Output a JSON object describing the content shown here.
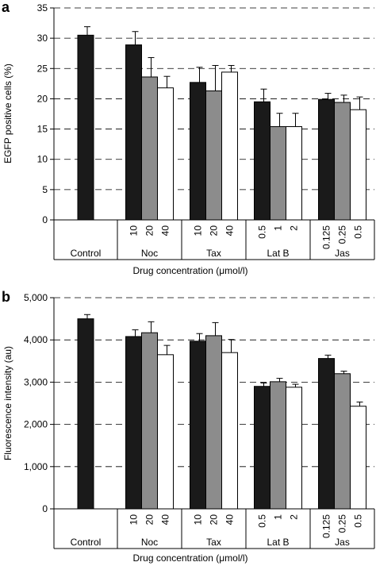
{
  "chart_data": [
    {
      "panel": "a",
      "type": "bar",
      "ylabel": "EGFP positive cells (%)",
      "xlabel": "Drug concentration (μmol/l)",
      "ylim": [
        0,
        35
      ],
      "yticks": [
        "0",
        "5",
        "10",
        "15",
        "20",
        "25",
        "30",
        "35"
      ],
      "grid": "dashed horizontal",
      "groups": [
        {
          "label": "Control",
          "bars": [
            {
              "conc": "",
              "value": 30.5,
              "err": 1.4,
              "color": "#1a1a1a"
            }
          ]
        },
        {
          "label": "Noc",
          "bars": [
            {
              "conc": "10",
              "value": 28.9,
              "err": 2.2,
              "color": "#1a1a1a"
            },
            {
              "conc": "20",
              "value": 23.6,
              "err": 3.2,
              "color": "#8c8c8c"
            },
            {
              "conc": "40",
              "value": 21.8,
              "err": 1.9,
              "color": "#ffffff"
            }
          ]
        },
        {
          "label": "Tax",
          "bars": [
            {
              "conc": "10",
              "value": 22.7,
              "err": 2.5,
              "color": "#1a1a1a"
            },
            {
              "conc": "20",
              "value": 21.3,
              "err": 4.2,
              "color": "#8c8c8c"
            },
            {
              "conc": "40",
              "value": 24.4,
              "err": 1.1,
              "color": "#ffffff"
            }
          ]
        },
        {
          "label": "Lat B",
          "bars": [
            {
              "conc": "0.5",
              "value": 19.5,
              "err": 2.1,
              "color": "#1a1a1a"
            },
            {
              "conc": "1",
              "value": 15.4,
              "err": 2.2,
              "color": "#8c8c8c"
            },
            {
              "conc": "2",
              "value": 15.4,
              "err": 2.2,
              "color": "#ffffff"
            }
          ]
        },
        {
          "label": "Jas",
          "bars": [
            {
              "conc": "0.125",
              "value": 19.9,
              "err": 1.0,
              "color": "#1a1a1a"
            },
            {
              "conc": "0.25",
              "value": 19.4,
              "err": 1.2,
              "color": "#8c8c8c"
            },
            {
              "conc": "0.5",
              "value": 18.2,
              "err": 2.1,
              "color": "#ffffff"
            }
          ]
        }
      ]
    },
    {
      "panel": "b",
      "type": "bar",
      "ylabel": "Fluorescence intensity (au)",
      "xlabel": "Drug concentration (μmol/l)",
      "ylim": [
        0,
        5000
      ],
      "yticks": [
        "0",
        "1,000",
        "2,000",
        "3,000",
        "4,000",
        "5,000"
      ],
      "grid": "dashed horizontal",
      "groups": [
        {
          "label": "Control",
          "bars": [
            {
              "conc": "",
              "value": 4500,
              "err": 100,
              "color": "#1a1a1a"
            }
          ]
        },
        {
          "label": "Noc",
          "bars": [
            {
              "conc": "10",
              "value": 4080,
              "err": 160,
              "color": "#1a1a1a"
            },
            {
              "conc": "20",
              "value": 4170,
              "err": 260,
              "color": "#8c8c8c"
            },
            {
              "conc": "40",
              "value": 3650,
              "err": 220,
              "color": "#ffffff"
            }
          ]
        },
        {
          "label": "Tax",
          "bars": [
            {
              "conc": "10",
              "value": 3970,
              "err": 180,
              "color": "#1a1a1a"
            },
            {
              "conc": "20",
              "value": 4100,
              "err": 310,
              "color": "#8c8c8c"
            },
            {
              "conc": "40",
              "value": 3700,
              "err": 310,
              "color": "#ffffff"
            }
          ]
        },
        {
          "label": "Lat B",
          "bars": [
            {
              "conc": "0.5",
              "value": 2900,
              "err": 80,
              "color": "#1a1a1a"
            },
            {
              "conc": "1",
              "value": 3010,
              "err": 80,
              "color": "#8c8c8c"
            },
            {
              "conc": "2",
              "value": 2880,
              "err": 70,
              "color": "#ffffff"
            }
          ]
        },
        {
          "label": "Jas",
          "bars": [
            {
              "conc": "0.125",
              "value": 3560,
              "err": 80,
              "color": "#1a1a1a"
            },
            {
              "conc": "0.25",
              "value": 3200,
              "err": 60,
              "color": "#8c8c8c"
            },
            {
              "conc": "0.5",
              "value": 2430,
              "err": 100,
              "color": "#ffffff"
            }
          ]
        }
      ]
    }
  ]
}
